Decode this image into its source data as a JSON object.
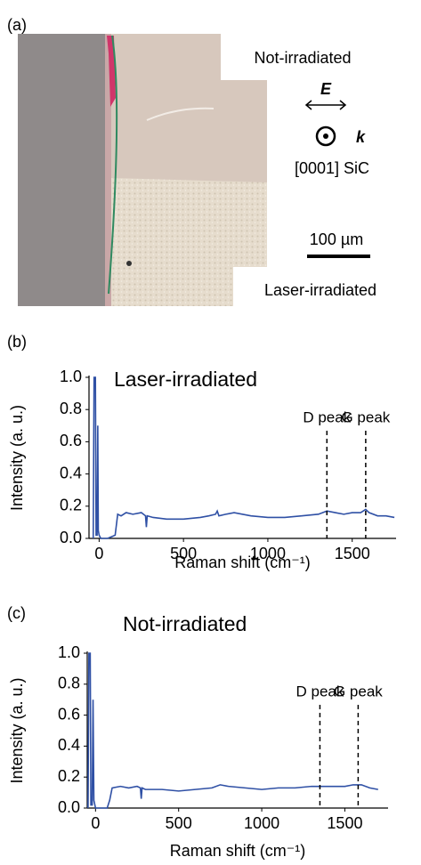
{
  "panel_labels": [
    "(a)",
    "(b)",
    "(c)"
  ],
  "micrograph": {
    "top_label": "Not-irradiated",
    "e_label": "E",
    "k_label": "k",
    "crystal_label": "[0001] SiC",
    "scale_label": "100 µm",
    "bottom_label": "Laser-irradiated"
  },
  "chart_data": [
    {
      "type": "line",
      "title": "Laser-irradiated",
      "x_label": "Raman shift (cm⁻¹)",
      "y_label": "Intensity (a. u.)",
      "xlim": [
        -60,
        1760
      ],
      "ylim": [
        0,
        1.0
      ],
      "xticks": [
        0,
        500,
        1000,
        1500
      ],
      "yticks": [
        {
          "value": 0,
          "label": "0.0"
        },
        0.2,
        0.4,
        0.6,
        0.8,
        {
          "value": 1.0,
          "label": "1.0"
        }
      ],
      "grid": false,
      "x": [
        -35,
        -30,
        -22,
        -18,
        -12,
        -8,
        -5,
        0,
        10,
        50,
        95,
        110,
        130,
        160,
        200,
        250,
        275,
        280,
        285,
        320,
        400,
        500,
        600,
        650,
        690,
        700,
        710,
        750,
        800,
        900,
        1000,
        1100,
        1200,
        1300,
        1350,
        1400,
        1450,
        1500,
        1550,
        1580,
        1600,
        1650,
        1700,
        1750
      ],
      "series": [
        {
          "color": "#2f50a5",
          "values": [
            0,
            1.0,
            1.0,
            0.02,
            0.02,
            0.7,
            0.05,
            0.02,
            0,
            0,
            0.02,
            0.15,
            0.14,
            0.16,
            0.15,
            0.16,
            0.14,
            0.07,
            0.14,
            0.13,
            0.12,
            0.12,
            0.13,
            0.14,
            0.15,
            0.17,
            0.14,
            0.15,
            0.16,
            0.14,
            0.13,
            0.13,
            0.14,
            0.15,
            0.17,
            0.16,
            0.15,
            0.16,
            0.16,
            0.18,
            0.16,
            0.14,
            0.14,
            0.13
          ]
        }
      ],
      "annotations": [
        {
          "text": "D peak",
          "x": 1350
        },
        {
          "text": "G peak",
          "x": 1580
        }
      ]
    },
    {
      "type": "line",
      "title": "Not-irradiated",
      "x_label": "Raman shift (cm⁻¹)",
      "y_label": "Intensity (a. u.)",
      "xlim": [
        -50,
        1760
      ],
      "ylim": [
        0,
        1.0
      ],
      "xticks": [
        0,
        500,
        1000,
        1500
      ],
      "yticks": [
        {
          "value": 0,
          "label": "0.0"
        },
        0.2,
        0.4,
        0.6,
        0.8,
        {
          "value": 1.0,
          "label": "1.0"
        }
      ],
      "grid": false,
      "x": [
        -45,
        -40,
        -32,
        -28,
        -20,
        -15,
        -10,
        0,
        30,
        70,
        85,
        100,
        150,
        200,
        250,
        270,
        275,
        280,
        300,
        400,
        500,
        600,
        700,
        750,
        800,
        900,
        1000,
        1100,
        1200,
        1300,
        1400,
        1500,
        1550,
        1600,
        1650,
        1700
      ],
      "series": [
        {
          "color": "#2f50a5",
          "values": [
            0,
            1.0,
            1.0,
            0.02,
            0.02,
            0.7,
            0.05,
            0,
            0,
            0,
            0.05,
            0.13,
            0.14,
            0.13,
            0.14,
            0.13,
            0.06,
            0.13,
            0.12,
            0.12,
            0.11,
            0.12,
            0.13,
            0.15,
            0.14,
            0.13,
            0.12,
            0.13,
            0.13,
            0.14,
            0.14,
            0.14,
            0.15,
            0.15,
            0.13,
            0.12
          ]
        }
      ],
      "annotations": [
        {
          "text": "D peak",
          "x": 1350
        },
        {
          "text": "G peak",
          "x": 1580
        }
      ]
    }
  ]
}
